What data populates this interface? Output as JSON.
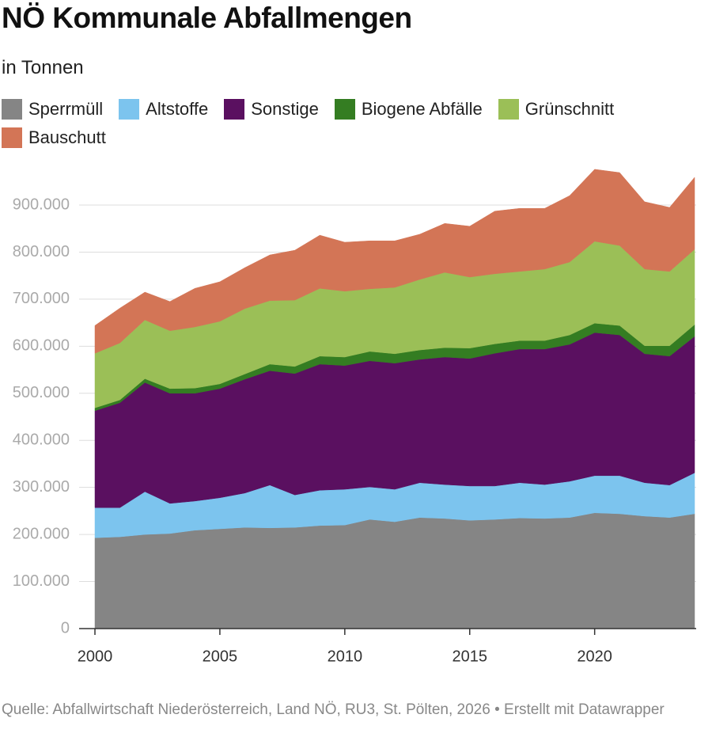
{
  "chart_data": {
    "type": "stacked-area",
    "title": "NÖ Kommunale Abfallmengen",
    "subtitle": "in Tonnen",
    "source": "Quelle: Abfallwirtschaft Niederösterreich, Land NÖ, RU3, St. Pölten, 2026 • Erstellt mit Datawrapper",
    "x": [
      2000,
      2001,
      2002,
      2003,
      2004,
      2005,
      2006,
      2007,
      2008,
      2009,
      2010,
      2011,
      2012,
      2013,
      2014,
      2015,
      2016,
      2017,
      2018,
      2019,
      2020,
      2021,
      2022,
      2023,
      2024
    ],
    "xlim": [
      2000,
      2024
    ],
    "xticks": [
      2000,
      2005,
      2010,
      2015,
      2020
    ],
    "ylim": [
      0,
      1000000
    ],
    "yticks": [
      0,
      {
        "value": 100000,
        "label": "100.000"
      },
      {
        "value": 200000,
        "label": "200.000"
      },
      {
        "value": 300000,
        "label": "300.000"
      },
      {
        "value": 400000,
        "label": "400.000"
      },
      {
        "value": 500000,
        "label": "500.000"
      },
      {
        "value": 600000,
        "label": "600.000"
      },
      {
        "value": 700000,
        "label": "700.000"
      },
      {
        "value": 800000,
        "label": "800.000"
      },
      {
        "value": 900000,
        "label": "900.000"
      }
    ],
    "grid": true,
    "series": [
      {
        "name": "Sperrmüll",
        "color": "#858585",
        "values": [
          193000,
          195000,
          200000,
          202000,
          209000,
          212000,
          215000,
          214000,
          215000,
          219000,
          220000,
          232000,
          227000,
          236000,
          234000,
          230000,
          232000,
          235000,
          234000,
          236000,
          246000,
          244000,
          239000,
          236000,
          244000
        ]
      },
      {
        "name": "Altstoffe",
        "color": "#7cc4ee",
        "values": [
          64000,
          62000,
          91000,
          64000,
          62000,
          66000,
          73000,
          91000,
          69000,
          75000,
          76000,
          69000,
          69000,
          74000,
          72000,
          73000,
          71000,
          75000,
          72000,
          77000,
          79000,
          81000,
          71000,
          69000,
          87000
        ]
      },
      {
        "name": "Sonstige",
        "color": "#5a1060",
        "values": [
          206000,
          223000,
          232000,
          234000,
          229000,
          232000,
          242000,
          243000,
          258000,
          268000,
          263000,
          268000,
          268000,
          262000,
          271000,
          271000,
          282000,
          284000,
          288000,
          291000,
          304000,
          299000,
          274000,
          274000,
          290000
        ]
      },
      {
        "name": "Biogene Abfälle",
        "color": "#347d22",
        "values": [
          6000,
          6000,
          8000,
          10000,
          11000,
          10000,
          11000,
          14000,
          15000,
          17000,
          18000,
          20000,
          20000,
          20000,
          20000,
          22000,
          20000,
          18000,
          18000,
          20000,
          20000,
          20000,
          17000,
          22000,
          25000
        ]
      },
      {
        "name": "Grünschnitt",
        "color": "#9bbf57",
        "values": [
          116000,
          121000,
          125000,
          123000,
          130000,
          133000,
          139000,
          135000,
          141000,
          144000,
          140000,
          133000,
          141000,
          150000,
          160000,
          151000,
          149000,
          147000,
          152000,
          155000,
          174000,
          170000,
          163000,
          158000,
          160000
        ]
      },
      {
        "name": "Bauschutt",
        "color": "#d37556",
        "values": [
          59000,
          74000,
          59000,
          62000,
          82000,
          84000,
          87000,
          97000,
          106000,
          113000,
          104000,
          102000,
          99000,
          96000,
          104000,
          108000,
          133000,
          134000,
          129000,
          141000,
          153000,
          155000,
          143000,
          136000,
          153000
        ]
      }
    ]
  }
}
